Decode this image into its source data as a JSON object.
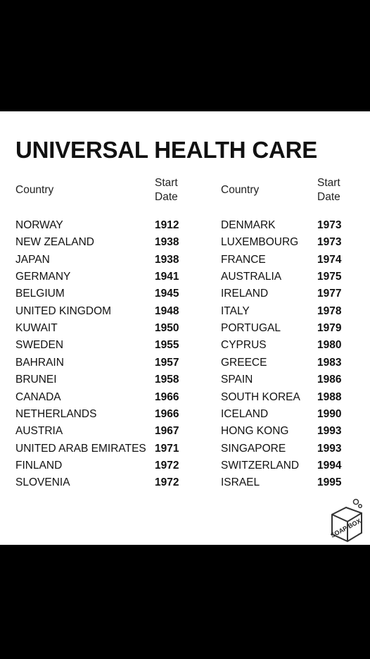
{
  "title": "UNIVERSAL HEALTH CARE",
  "tables": [
    {
      "headers": [
        "Country",
        "Start Date"
      ],
      "rows": [
        [
          "NORWAY",
          1912
        ],
        [
          "NEW ZEALAND",
          1938
        ],
        [
          "JAPAN",
          1938
        ],
        [
          "GERMANY",
          1941
        ],
        [
          "BELGIUM",
          1945
        ],
        [
          "UNITED KINGDOM",
          1948
        ],
        [
          "KUWAIT",
          1950
        ],
        [
          "SWEDEN",
          1955
        ],
        [
          "BAHRAIN",
          1957
        ],
        [
          "BRUNEI",
          1958
        ],
        [
          "CANADA",
          1966
        ],
        [
          "NETHERLANDS",
          1966
        ],
        [
          "AUSTRIA",
          1967
        ],
        [
          "UNITED ARAB EMIRATES",
          1971
        ],
        [
          "FINLAND",
          1972
        ],
        [
          "SLOVENIA",
          1972
        ]
      ]
    },
    {
      "headers": [
        "Country",
        "Start Date"
      ],
      "rows": [
        [
          "DENMARK",
          1973
        ],
        [
          "LUXEMBOURG",
          1973
        ],
        [
          "FRANCE",
          1974
        ],
        [
          "AUSTRALIA",
          1975
        ],
        [
          "IRELAND",
          1977
        ],
        [
          "ITALY",
          1978
        ],
        [
          "PORTUGAL",
          1979
        ],
        [
          "CYPRUS",
          1980
        ],
        [
          "GREECE",
          1983
        ],
        [
          "SPAIN",
          1986
        ],
        [
          "SOUTH KOREA",
          1988
        ],
        [
          "ICELAND",
          1990
        ],
        [
          "HONG KONG",
          1993
        ],
        [
          "SINGAPORE",
          1993
        ],
        [
          "SWITZERLAND",
          1994
        ],
        [
          "ISRAEL",
          1995
        ]
      ]
    }
  ],
  "logo": "SOAP BOX"
}
